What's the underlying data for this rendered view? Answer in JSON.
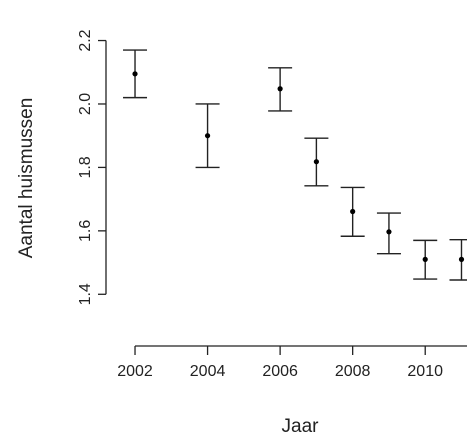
{
  "chart_data": {
    "type": "scatter",
    "title": "",
    "xlabel": "Jaar",
    "ylabel": "Aantal huismussen",
    "xlim": [
      2001.2,
      2011.4
    ],
    "ylim": [
      1.3,
      2.29
    ],
    "x_ticks": [
      2002,
      2004,
      2006,
      2008,
      2010
    ],
    "y_ticks": [
      1.4,
      1.6,
      1.8,
      2.0,
      2.2
    ],
    "x_tick_labels": [
      "2002",
      "2004",
      "2006",
      "2008",
      "2010"
    ],
    "y_tick_labels": [
      "1.4",
      "1.6",
      "1.8",
      "2.0",
      "2.2"
    ],
    "grid": false,
    "points": [
      {
        "x": 2002,
        "y": 2.095,
        "lower": 2.02,
        "upper": 2.17
      },
      {
        "x": 2004,
        "y": 1.9,
        "lower": 1.8,
        "upper": 2.0
      },
      {
        "x": 2006,
        "y": 2.048,
        "lower": 1.978,
        "upper": 2.114
      },
      {
        "x": 2007,
        "y": 1.818,
        "lower": 1.742,
        "upper": 1.892
      },
      {
        "x": 2008,
        "y": 1.661,
        "lower": 1.583,
        "upper": 1.737
      },
      {
        "x": 2009,
        "y": 1.597,
        "lower": 1.528,
        "upper": 1.656
      },
      {
        "x": 2010,
        "y": 1.51,
        "lower": 1.448,
        "upper": 1.57
      },
      {
        "x": 2011,
        "y": 1.51,
        "lower": 1.445,
        "upper": 1.572
      }
    ]
  }
}
